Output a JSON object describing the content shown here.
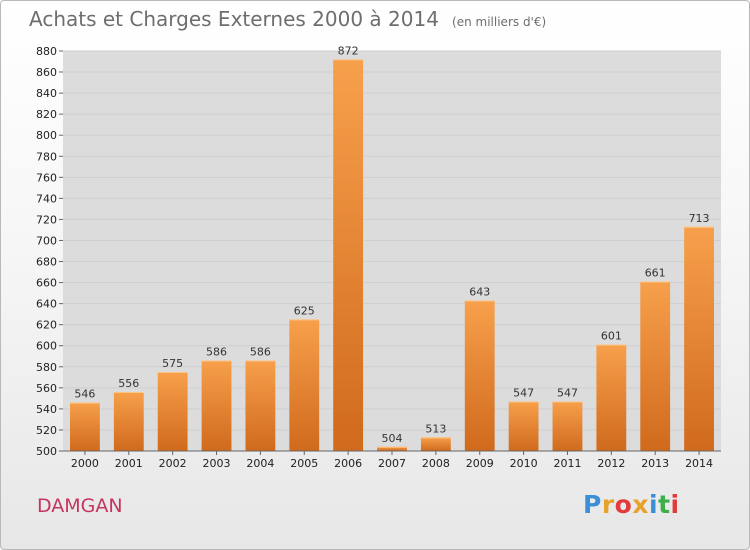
{
  "header": {
    "title": "Achats et Charges Externes 2000 à 2014",
    "subtitle": "(en milliers d'€)"
  },
  "footer": {
    "place": "DAMGAN",
    "logo_text": "Proxiti",
    "logo_colors": [
      "#3a8fd6",
      "#e8a12a",
      "#e23b3b",
      "#e8a12a",
      "#3a8fd6",
      "#3cae4a",
      "#e23b3b"
    ]
  },
  "colors": {
    "bar_light": "#f7a04c",
    "bar_dark": "#d06a1c",
    "grid": "#cfcfcf",
    "plot_background": "#dcdcdc"
  },
  "chart_data": {
    "type": "bar",
    "title": "Achats et Charges Externes 2000 à 2014",
    "subtitle": "(en milliers d'€)",
    "categories": [
      "2000",
      "2001",
      "2002",
      "2003",
      "2004",
      "2005",
      "2006",
      "2007",
      "2008",
      "2009",
      "2010",
      "2011",
      "2012",
      "2013",
      "2014"
    ],
    "values": [
      546,
      556,
      575,
      586,
      586,
      625,
      872,
      504,
      513,
      643,
      547,
      547,
      601,
      661,
      713
    ],
    "ylim": [
      500,
      880
    ],
    "ytick_step": 20,
    "grid": true,
    "legend": "none"
  }
}
